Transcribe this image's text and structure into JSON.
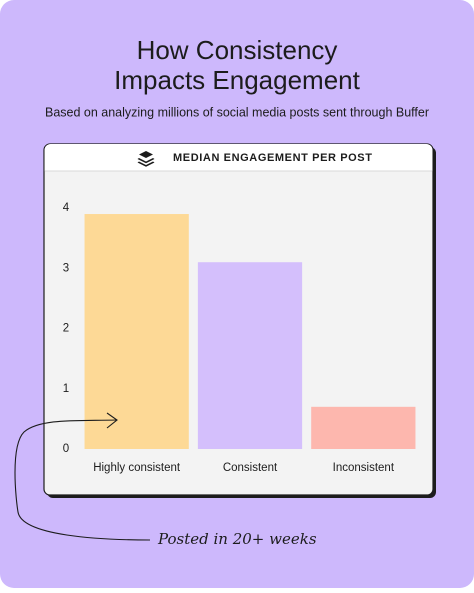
{
  "chart_data": {
    "type": "bar",
    "title": [
      "How Consistency",
      "Impacts Engagement"
    ],
    "subtitle": "Based on analyzing millions of social media posts sent through Buffer",
    "chart_header": "MEDIAN ENGAGEMENT PER POST",
    "categories": [
      "Highly consistent",
      "Consistent",
      "Inconsistent"
    ],
    "values": [
      3.9,
      3.1,
      0.7
    ],
    "colors": [
      "#fdd996",
      "#d4bffc",
      "#fdb7ae"
    ],
    "ylim": [
      0,
      4
    ],
    "yticks": [
      0,
      1,
      2,
      3,
      4
    ],
    "grid": false,
    "annotation": "Posted in 20+ weeks"
  }
}
